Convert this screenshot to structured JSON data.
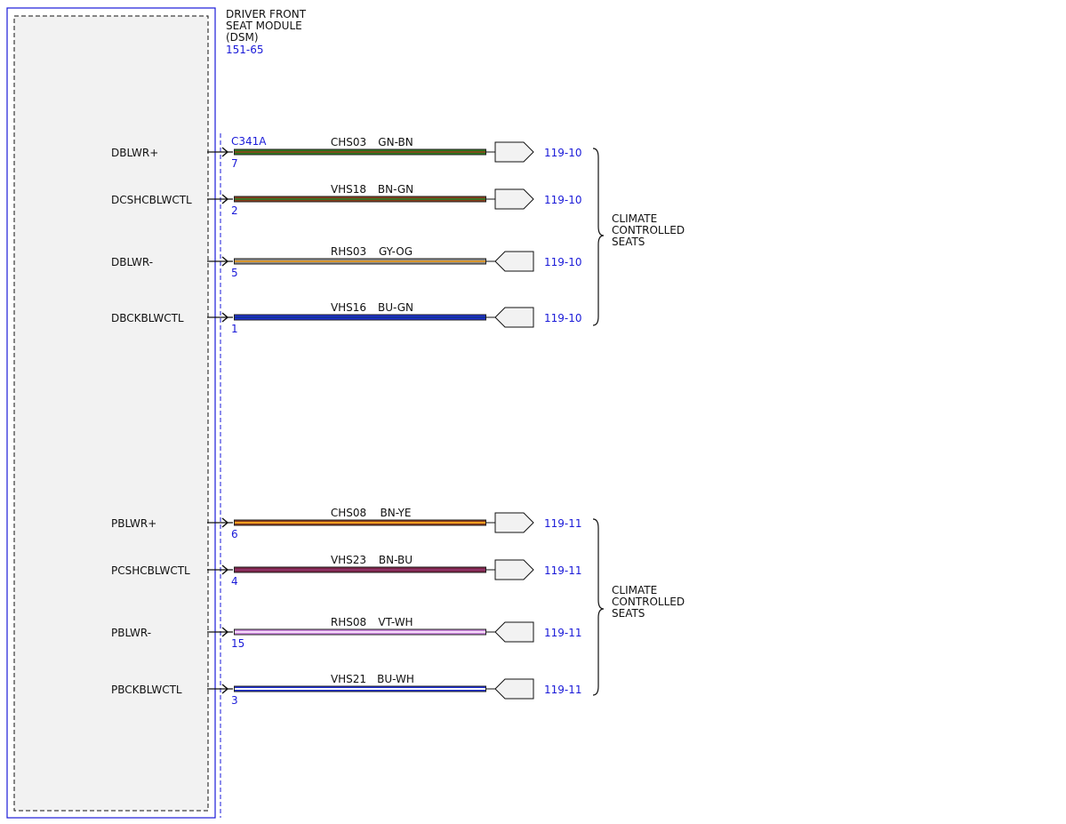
{
  "module": {
    "title_lines": [
      "DRIVER FRONT",
      "SEAT MODULE",
      "(DSM)"
    ],
    "ref": "151-65",
    "connector": "C341A",
    "border_color": "#1a1ad8"
  },
  "wires": [
    {
      "signal": "DBLWR+",
      "pin": "7",
      "circuit": "CHS03",
      "color_code": "GN-BN",
      "colors": [
        "#2f7a1e",
        "#7a4a1a"
      ],
      "dest": "119-10",
      "dir": "out"
    },
    {
      "signal": "DCSHCBLWCTL",
      "pin": "2",
      "circuit": "VHS18",
      "color_code": "BN-GN",
      "colors": [
        "#8a3c1c",
        "#3b6e22"
      ],
      "dest": "119-10",
      "dir": "out"
    },
    {
      "signal": "DBLWR-",
      "pin": "5",
      "circuit": "RHS03",
      "color_code": "GY-OG",
      "colors": [
        "#8f8f8f",
        "#d7962f"
      ],
      "dest": "119-10",
      "dir": "in"
    },
    {
      "signal": "DBCKBLWCTL",
      "pin": "1",
      "circuit": "VHS16",
      "color_code": "BU-GN",
      "colors": [
        "#1f2fd0",
        "#13339a"
      ],
      "dest": "119-10",
      "dir": "in"
    },
    {
      "signal": "PBLWR+",
      "pin": "6",
      "circuit": "CHS08",
      "color_code": "BN-YE",
      "colors": [
        "#8a3c1c",
        "#f0a020"
      ],
      "dest": "119-11",
      "dir": "out"
    },
    {
      "signal": "PCSHCBLWCTL",
      "pin": "4",
      "circuit": "VHS23",
      "color_code": "BN-BU",
      "colors": [
        "#7a2244",
        "#8e3366"
      ],
      "dest": "119-11",
      "dir": "out"
    },
    {
      "signal": "PBLWR-",
      "pin": "15",
      "circuit": "RHS08",
      "color_code": "VT-WH",
      "colors": [
        "#cc88dd",
        "#f2d8f6"
      ],
      "dest": "119-11",
      "dir": "in"
    },
    {
      "signal": "PBCKBLWCTL",
      "pin": "3",
      "circuit": "VHS21",
      "color_code": "BU-WH",
      "colors": [
        "#1f2fd0",
        "#ffffff"
      ],
      "dest": "119-11",
      "dir": "in"
    }
  ],
  "groups": [
    {
      "lines": [
        "CLIMATE",
        "CONTROLLED",
        "SEATS"
      ]
    },
    {
      "lines": [
        "CLIMATE",
        "CONTROLLED",
        "SEATS"
      ]
    }
  ]
}
